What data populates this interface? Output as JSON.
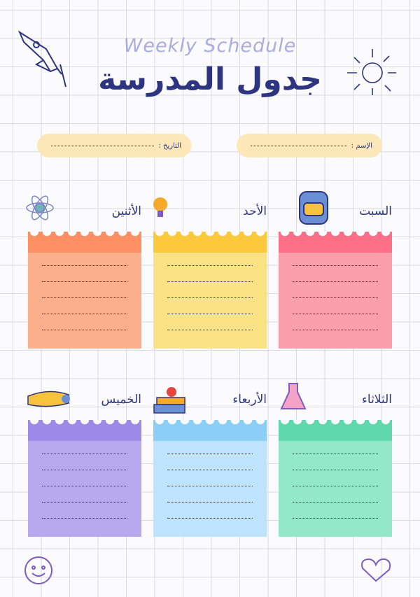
{
  "header": {
    "subtitle": "Weekly Schedule",
    "title": "جدول المدرسة"
  },
  "fields": {
    "name": "الإسم :",
    "date": "التاريخ :"
  },
  "days": [
    "السبت",
    "الأحد",
    "الأثنين",
    "الثلاثاء",
    "الأربعاء",
    "الخميس"
  ]
}
